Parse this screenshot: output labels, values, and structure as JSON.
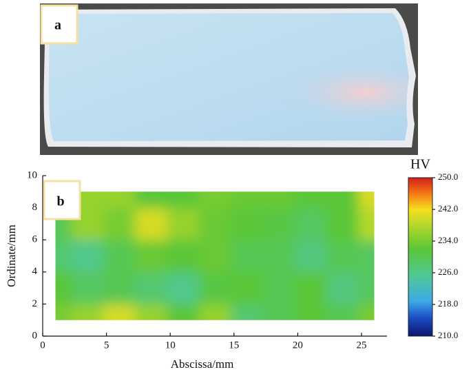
{
  "photo": {
    "label": "a"
  },
  "chart_data": {
    "type": "contour",
    "panel_label": "b",
    "x_label": "Abscissa/mm",
    "y_label": "Ordinate/mm",
    "x": [
      1,
      3.5,
      6,
      8.5,
      11,
      13.5,
      16,
      18.5,
      21,
      23.5,
      26
    ],
    "y": [
      1,
      3,
      5,
      7,
      9
    ],
    "z": [
      [
        234,
        236,
        240,
        236,
        232,
        236,
        228,
        230,
        232,
        230,
        234
      ],
      [
        232,
        229,
        230,
        228,
        226,
        231,
        232,
        230,
        232,
        227,
        229
      ],
      [
        228,
        226,
        230,
        233,
        232,
        233,
        230,
        230,
        227,
        230,
        229
      ],
      [
        230,
        236,
        234,
        240,
        236,
        233,
        232,
        231,
        229,
        232,
        238
      ],
      [
        233,
        236,
        236,
        232,
        232,
        234,
        233,
        233,
        232,
        232,
        240
      ]
    ],
    "xlim": [
      0,
      27
    ],
    "ylim": [
      0,
      10
    ],
    "xticks": [
      0,
      5,
      10,
      15,
      20,
      25
    ],
    "yticks": [
      0,
      2,
      4,
      6,
      8,
      10
    ],
    "colorbar_label": "HV",
    "zlim": [
      210,
      250
    ],
    "zticks": [
      {
        "value": 210,
        "label": "210.0"
      },
      {
        "value": 218,
        "label": "218.0"
      },
      {
        "value": 226,
        "label": "226.0"
      },
      {
        "value": 234,
        "label": "234.0"
      },
      {
        "value": 242,
        "label": "242.0"
      },
      {
        "value": 250,
        "label": "250.0"
      }
    ]
  }
}
